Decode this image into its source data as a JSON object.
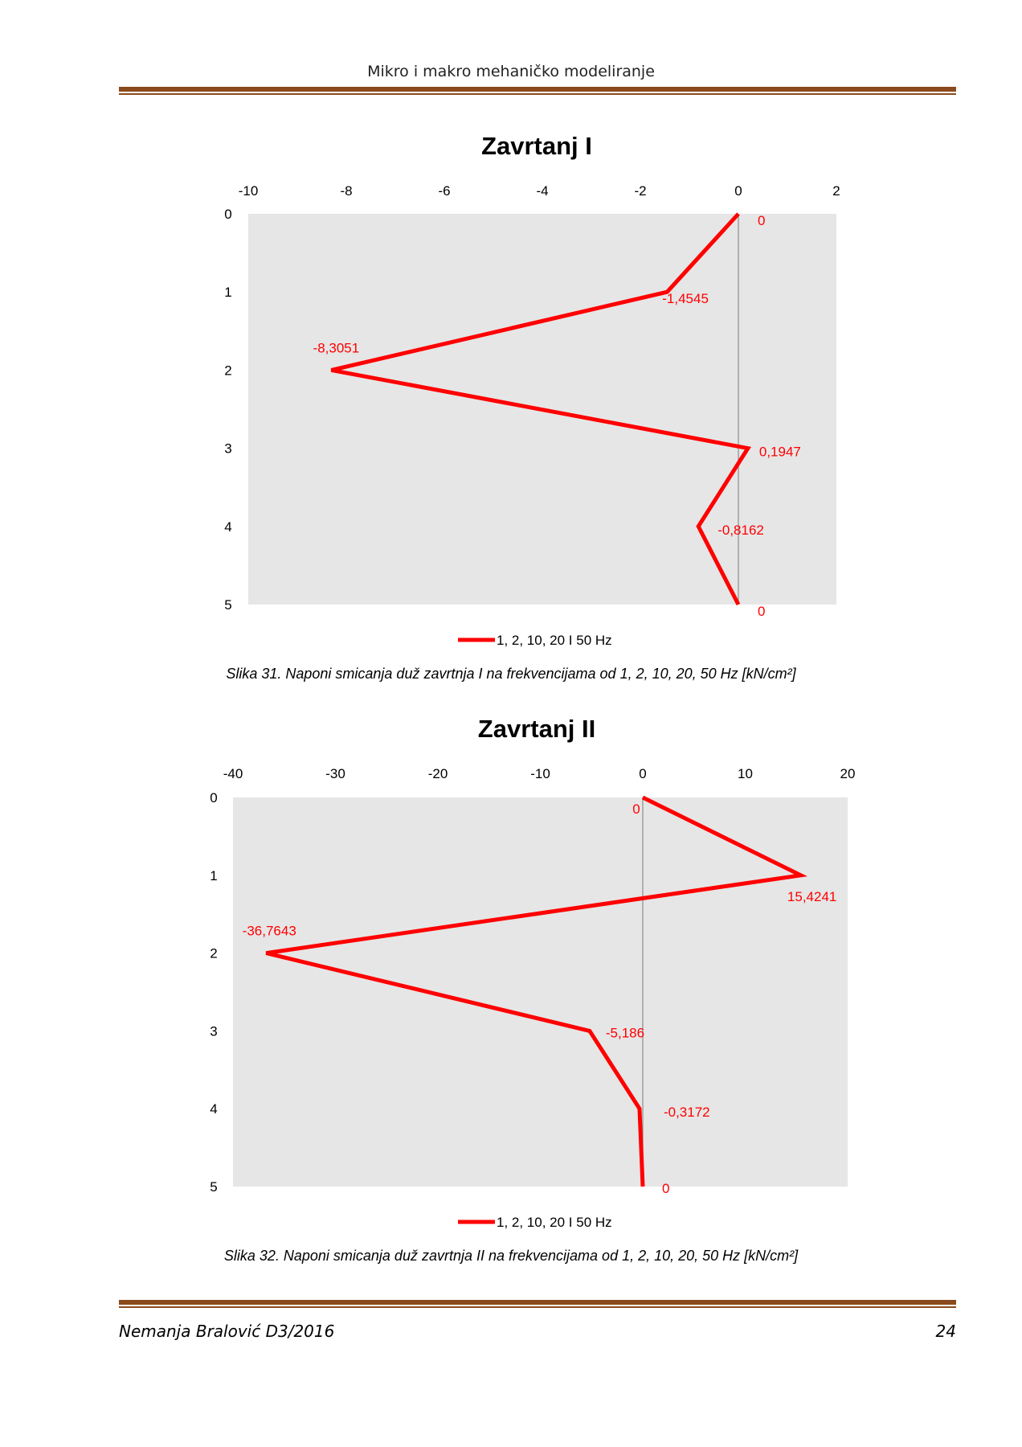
{
  "header": {
    "title": "Mikro i makro mehaničko modeliranje"
  },
  "footer": {
    "author": "Nemanja Bralović D3/2016",
    "page_number": "24"
  },
  "captions": [
    "Slika 31. Naponi smicanja duž zavrtnja I na frekvencijama od 1, 2, 10, 20, 50 Hz  [kN/cm²]",
    "Slika 32. Naponi smicanja duž zavrtnja II na frekvencijama od 1, 2, 10, 20, 50 Hz  [kN/cm²]"
  ],
  "colors": {
    "series": "#ff0000",
    "plot_bg": "#e6e6e6",
    "rule": "#8a4a1c"
  },
  "chart_data": [
    {
      "type": "line",
      "title": "Zavrtanj I",
      "x_ticks": [
        "-10",
        "-8",
        "-6",
        "-4",
        "-2",
        "0",
        "2"
      ],
      "y_ticks": [
        "0",
        "1",
        "2",
        "3",
        "4",
        "5"
      ],
      "xlim": [
        -10,
        2
      ],
      "ylim": [
        0,
        5
      ],
      "y_inverted": true,
      "x_axis_position": "top",
      "legend_position": "bottom",
      "series": [
        {
          "name": "1, 2, 10, 20 I 50 Hz",
          "color": "#ff0000",
          "x": [
            0,
            -1.4545,
            -8.3051,
            0.1947,
            -0.8162,
            0
          ],
          "y": [
            0,
            1,
            2,
            3,
            4,
            5
          ],
          "labels": [
            "0",
            "-1,4545",
            "-8,3051",
            "0,1947",
            "-0,8162",
            "0"
          ]
        }
      ]
    },
    {
      "type": "line",
      "title": "Zavrtanj II",
      "x_ticks": [
        "-40",
        "-30",
        "-20",
        "-10",
        "0",
        "10",
        "20"
      ],
      "y_ticks": [
        "0",
        "1",
        "2",
        "3",
        "4",
        "5"
      ],
      "xlim": [
        -40,
        20
      ],
      "ylim": [
        0,
        5
      ],
      "y_inverted": true,
      "x_axis_position": "top",
      "legend_position": "bottom",
      "series": [
        {
          "name": "1, 2, 10, 20 I 50 Hz",
          "color": "#ff0000",
          "x": [
            0,
            15.4241,
            -36.7643,
            -5.186,
            -0.3172,
            0
          ],
          "y": [
            0,
            1,
            2,
            3,
            4,
            5
          ],
          "labels": [
            "0",
            "15,4241",
            "-36,7643",
            "-5,186",
            "-0,3172",
            "0"
          ]
        }
      ]
    }
  ]
}
